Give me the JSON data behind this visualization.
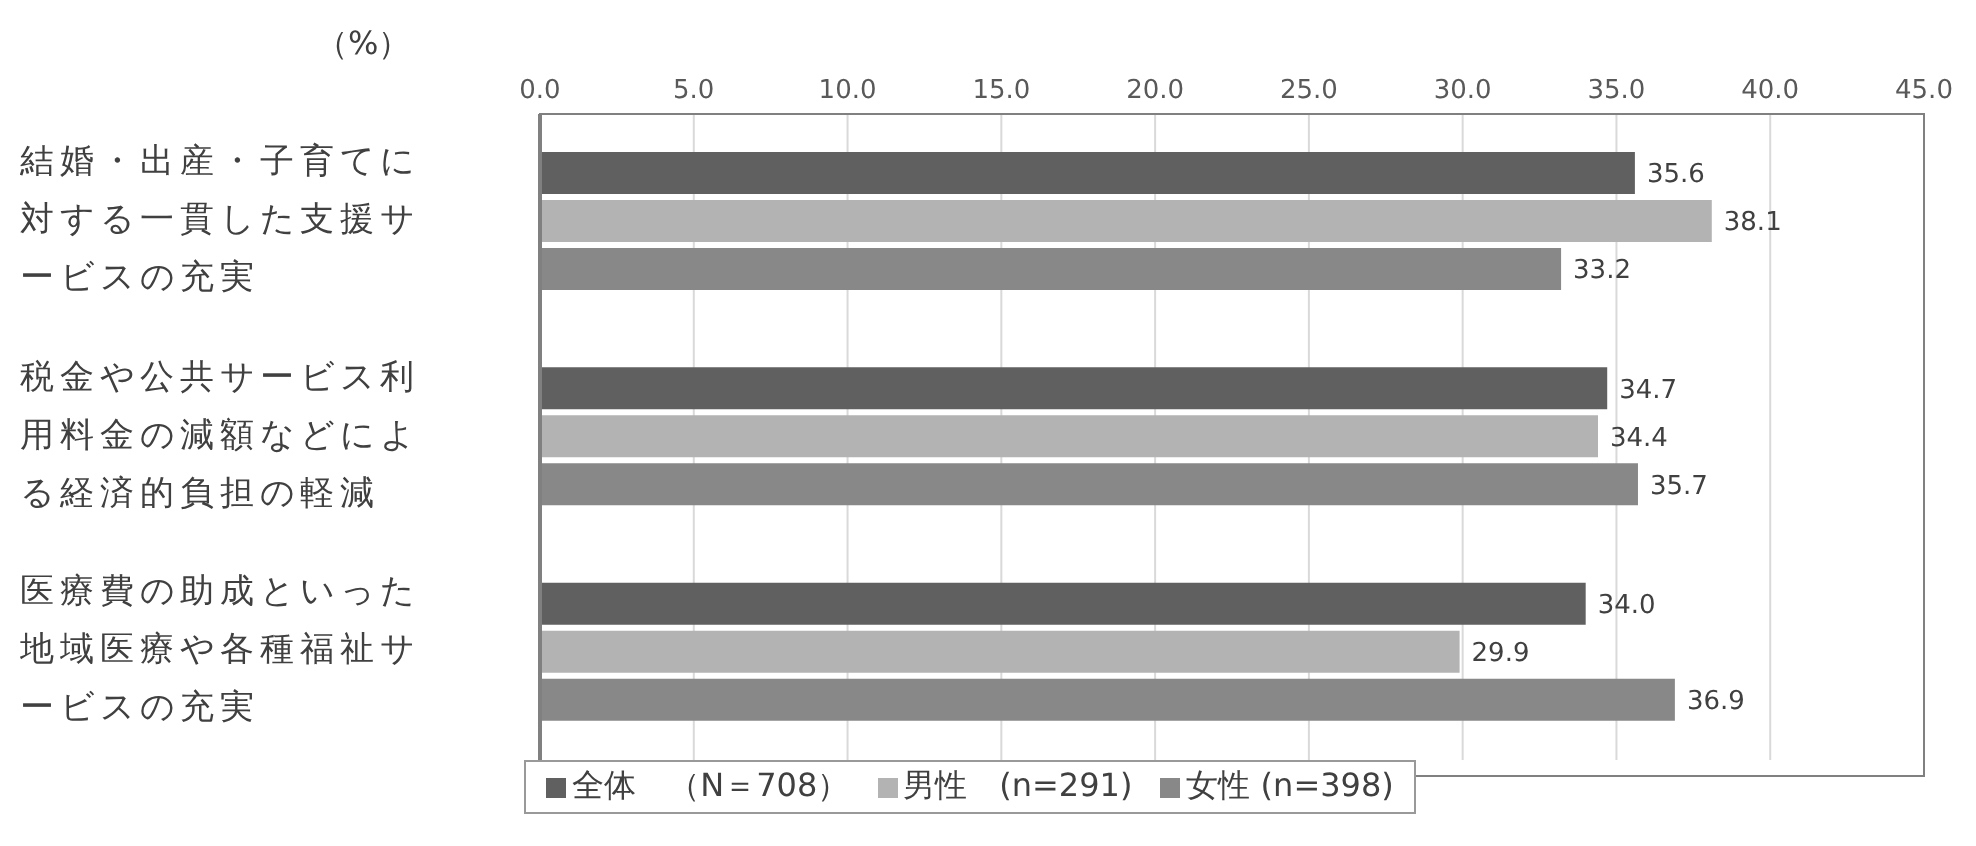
{
  "chart_data": {
    "type": "bar",
    "orientation": "horizontal",
    "xlabel": "（%）",
    "categories": [
      "結婚・出産・子育てに対する一貫した支援サービスの充実",
      "税金や公共サービス利用料金の減額などによる経済的負担の軽減",
      "医療費の助成といった地域医療や各種福祉サービスの充実"
    ],
    "series": [
      {
        "name": "全体　（N＝708）",
        "color": "#606060",
        "values": [
          35.6,
          34.7,
          34.0
        ],
        "value_labels": [
          "35.6",
          "34.7",
          "34.0"
        ]
      },
      {
        "name": "男性　(n=291)",
        "color": "#b3b3b3",
        "values": [
          38.1,
          34.4,
          29.9
        ],
        "value_labels": [
          "38.1",
          "34.4",
          "29.9"
        ]
      },
      {
        "name": "女性 (n=398)",
        "color": "#888888",
        "values": [
          33.2,
          35.7,
          36.9
        ],
        "value_labels": [
          "33.2",
          "35.7",
          "36.9"
        ]
      }
    ],
    "xlim": [
      0,
      45
    ],
    "xticks": [
      {
        "value": 0,
        "label": "0.0"
      },
      {
        "value": 5,
        "label": "5.0"
      },
      {
        "value": 10,
        "label": "10.0"
      },
      {
        "value": 15,
        "label": "15.0"
      },
      {
        "value": 20,
        "label": "20.0"
      },
      {
        "value": 25,
        "label": "25.0"
      },
      {
        "value": 30,
        "label": "30.0"
      },
      {
        "value": 35,
        "label": "35.0"
      },
      {
        "value": 40,
        "label": "40.0"
      },
      {
        "value": 45,
        "label": "45.0"
      }
    ],
    "grid": "x",
    "legend": "bottom"
  }
}
